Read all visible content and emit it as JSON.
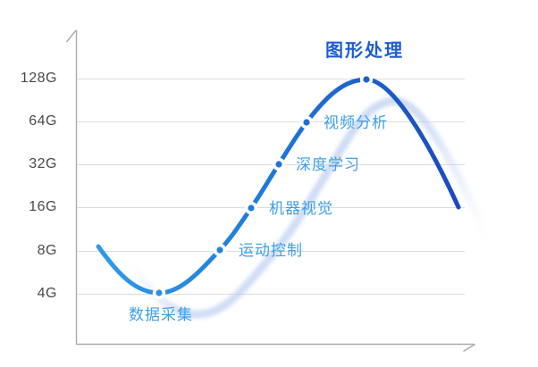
{
  "chart_data": {
    "type": "line",
    "title": "图形处理",
    "description_visible_text_only": true,
    "ylabel": "",
    "xlabel": "",
    "grid": true,
    "legend": false,
    "y_ticks": [
      "128G",
      "64G",
      "32G",
      "16G",
      "8G",
      "4G"
    ],
    "y_scale": "log2",
    "curve_start_value": "8G",
    "curve_end_value": "16G",
    "points": [
      {
        "label": "数据采集",
        "value": "4G",
        "label_position": "below",
        "highlight": false
      },
      {
        "label": "运动控制",
        "value": "8G",
        "label_position": "right",
        "highlight": false
      },
      {
        "label": "机器视觉",
        "value": "16G",
        "label_position": "right",
        "highlight": false
      },
      {
        "label": "深度学习",
        "value": "32G",
        "label_position": "right",
        "highlight": false
      },
      {
        "label": "视频分析",
        "value": "64G",
        "label_position": "right",
        "highlight": false
      },
      {
        "label": "图形处理",
        "value": "128G",
        "label_position": "above",
        "highlight": true
      }
    ],
    "colors": {
      "curve_gradient_start": "#2F9BE7",
      "curve_gradient_end": "#1B49BF",
      "point_label": "#3E9FE5",
      "highlight_label": "#1F5ED1",
      "gridline": "#dcdcdc",
      "axis": "#ababab",
      "tick_text": "#4a4a4a",
      "ghost_curve": "#b9ccf0",
      "marker_ring": "#ffffff",
      "background": "#ffffff"
    }
  }
}
